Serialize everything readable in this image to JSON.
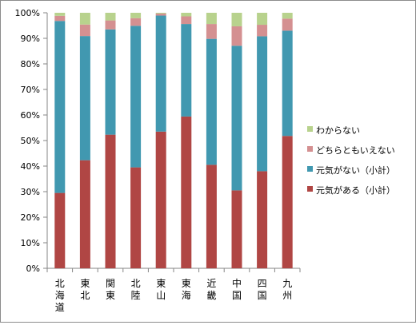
{
  "chart_data": {
    "type": "bar",
    "stacked": true,
    "normalized": true,
    "categories": [
      "北海道",
      "東北",
      "関東",
      "北陸",
      "東山",
      "東海",
      "近畿",
      "中国",
      "四国",
      "九州"
    ],
    "series": [
      {
        "name": "元気がある（小計）",
        "color": "#b04644",
        "values": [
          29.5,
          42.3,
          52.3,
          39.5,
          53.5,
          59.4,
          40.5,
          30.5,
          38.0,
          51.8
        ]
      },
      {
        "name": "元気がない（小計）",
        "color": "#4198b0",
        "values": [
          67.3,
          48.6,
          41.2,
          55.4,
          45.4,
          36.2,
          49.3,
          56.6,
          52.8,
          41.2
        ]
      },
      {
        "name": "どちらともいえない",
        "color": "#d49091",
        "values": [
          2.0,
          4.5,
          3.5,
          3.0,
          0.8,
          3.0,
          5.8,
          7.6,
          4.5,
          4.7
        ]
      },
      {
        "name": "わからない",
        "color": "#b8d28d",
        "values": [
          1.2,
          4.6,
          3.0,
          2.1,
          0.3,
          1.4,
          4.4,
          5.3,
          4.7,
          2.3
        ]
      }
    ],
    "y_ticks": [
      "0%",
      "10%",
      "20%",
      "30%",
      "40%",
      "50%",
      "60%",
      "70%",
      "80%",
      "90%",
      "100%"
    ],
    "ylim": [
      0,
      100
    ],
    "grid": false,
    "legend_position": "right",
    "legend_order": [
      "わからない",
      "どちらともいえない",
      "元気がない（小計）",
      "元気がある（小計）"
    ],
    "title": "",
    "xlabel": "",
    "ylabel": ""
  }
}
